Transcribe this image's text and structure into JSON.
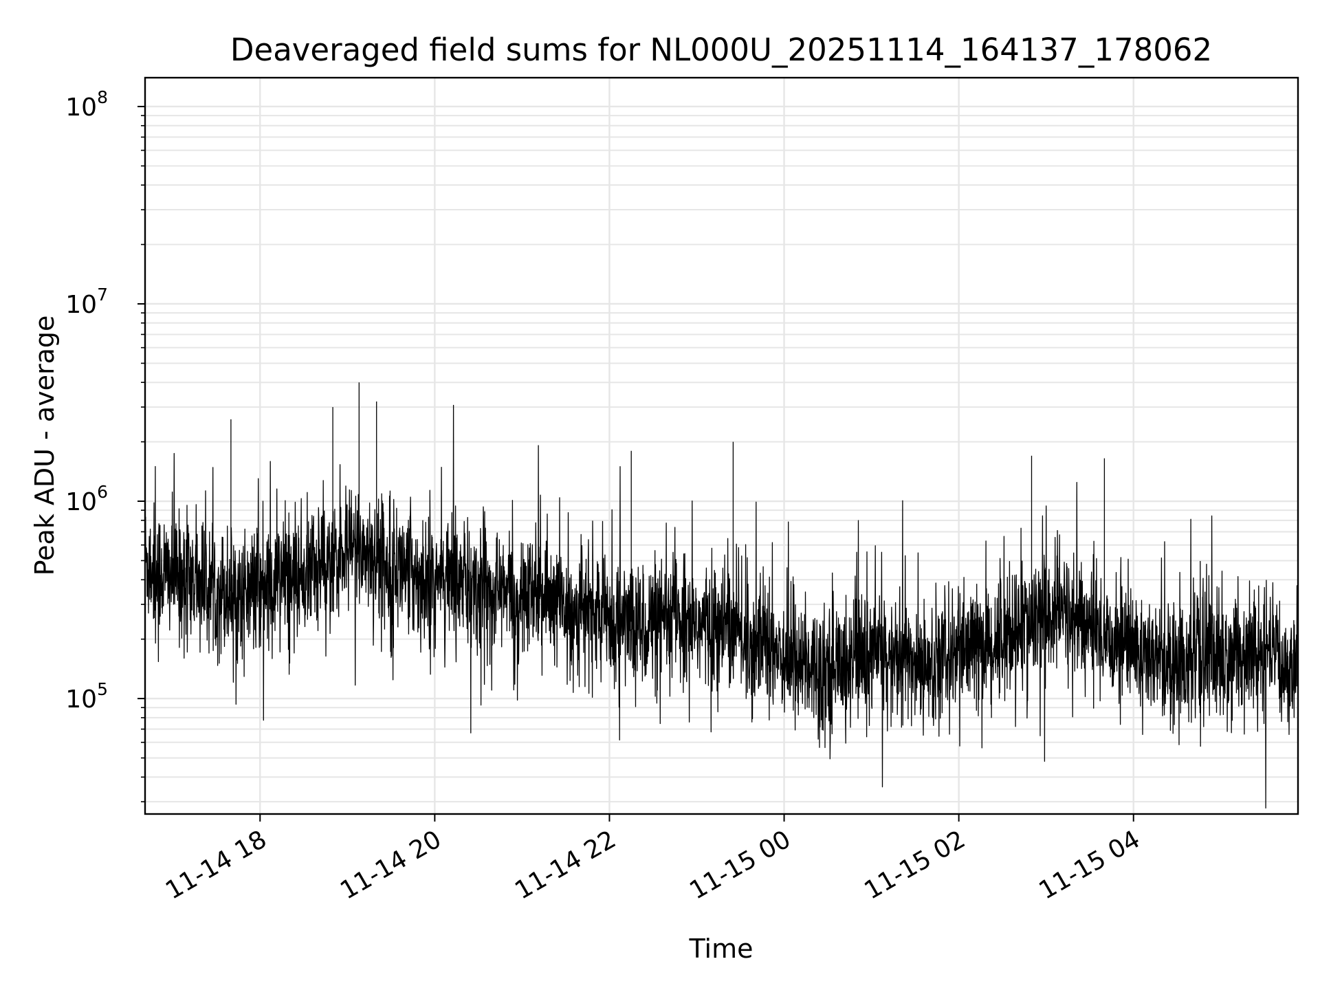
{
  "chart_data": {
    "type": "line",
    "title": "Deaveraged field sums for NL000U_20251114_164137_178062",
    "xlabel": "Time",
    "ylabel": "Peak ADU - average",
    "yscale": "log",
    "xlim": [
      "11-14 16:41",
      "11-15 05:53"
    ],
    "ylim": [
      26000,
      140000000
    ],
    "grid": true,
    "line_color": "#000000",
    "grid_color": "#e6e6e6",
    "x_ticks": [
      {
        "label": "11-14 18",
        "t": "11-14 18:00"
      },
      {
        "label": "11-14 20",
        "t": "11-14 20:00"
      },
      {
        "label": "11-14 22",
        "t": "11-14 22:00"
      },
      {
        "label": "11-15 00",
        "t": "11-15 00:00"
      },
      {
        "label": "11-15 02",
        "t": "11-15 02:00"
      },
      {
        "label": "11-15 04",
        "t": "11-15 04:00"
      }
    ],
    "y_ticks": [
      {
        "base": "10",
        "exp": "5",
        "value": 100000
      },
      {
        "base": "10",
        "exp": "6",
        "value": 1000000
      },
      {
        "base": "10",
        "exp": "7",
        "value": 10000000
      },
      {
        "base": "10",
        "exp": "8",
        "value": 100000000
      }
    ],
    "series": [
      {
        "x": [
          "11-14 16:41",
          "11-14 16:50",
          "11-14 17:00",
          "11-14 17:10",
          "11-14 17:20",
          "11-14 17:30",
          "11-14 17:40",
          "11-14 17:50",
          "11-14 18:00",
          "11-14 18:10",
          "11-14 18:20",
          "11-14 18:30",
          "11-14 18:40",
          "11-14 18:50",
          "11-14 19:00",
          "11-14 19:10",
          "11-14 19:20",
          "11-14 19:30",
          "11-14 19:40",
          "11-14 19:50",
          "11-14 20:00",
          "11-14 20:10",
          "11-14 20:20",
          "11-14 20:30",
          "11-14 20:40",
          "11-14 20:50",
          "11-14 21:00",
          "11-14 21:10",
          "11-14 21:20",
          "11-14 21:30",
          "11-14 21:40",
          "11-14 21:50",
          "11-14 22:00",
          "11-14 22:10",
          "11-14 22:20",
          "11-14 22:30",
          "11-14 22:40",
          "11-14 22:50",
          "11-14 23:00",
          "11-14 23:10",
          "11-14 23:20",
          "11-14 23:30",
          "11-14 23:40",
          "11-14 23:50",
          "11-15 00:00",
          "11-15 00:10",
          "11-15 00:20",
          "11-15 00:30",
          "11-15 00:40",
          "11-15 00:50",
          "11-15 01:00",
          "11-15 01:10",
          "11-15 01:20",
          "11-15 01:30",
          "11-15 01:40",
          "11-15 01:50",
          "11-15 02:00",
          "11-15 02:10",
          "11-15 02:20",
          "11-15 02:30",
          "11-15 02:40",
          "11-15 02:50",
          "11-15 03:00",
          "11-15 03:10",
          "11-15 03:20",
          "11-15 03:30",
          "11-15 03:40",
          "11-15 03:50",
          "11-15 04:00",
          "11-15 04:10",
          "11-15 04:20",
          "11-15 04:30",
          "11-15 04:40",
          "11-15 04:50",
          "11-15 05:00",
          "11-15 05:10",
          "11-15 05:20",
          "11-15 05:30",
          "11-15 05:40",
          "11-15 05:53"
        ],
        "y": [
          500000,
          450000,
          420000,
          400000,
          380000,
          360000,
          350000,
          340000,
          360000,
          380000,
          400000,
          430000,
          480000,
          520000,
          560000,
          580000,
          520000,
          480000,
          450000,
          420000,
          400000,
          380000,
          370000,
          360000,
          350000,
          340000,
          330000,
          320000,
          310000,
          300000,
          280000,
          270000,
          260000,
          250000,
          240000,
          240000,
          250000,
          260000,
          240000,
          230000,
          220000,
          210000,
          200000,
          190000,
          170000,
          160000,
          150000,
          150000,
          150000,
          160000,
          160000,
          160000,
          160000,
          150000,
          150000,
          160000,
          170000,
          180000,
          190000,
          200000,
          220000,
          240000,
          260000,
          280000,
          250000,
          230000,
          210000,
          200000,
          180000,
          170000,
          160000,
          160000,
          160000,
          160000,
          160000,
          160000,
          160000,
          160000,
          150000,
          150000
        ]
      }
    ],
    "noteworthy_peaks": [
      {
        "t": "11-14 19:08",
        "y": 4000000
      },
      {
        "t": "11-14 19:20",
        "y": 3200000
      },
      {
        "t": "11-14 18:50",
        "y": 3000000
      },
      {
        "t": "11-14 17:40",
        "y": 2600000
      },
      {
        "t": "11-14 23:25",
        "y": 2000000
      },
      {
        "t": "11-14 22:15",
        "y": 1800000
      },
      {
        "t": "11-15 02:50",
        "y": 1700000
      },
      {
        "t": "11-15 03:40",
        "y": 1650000
      }
    ]
  }
}
